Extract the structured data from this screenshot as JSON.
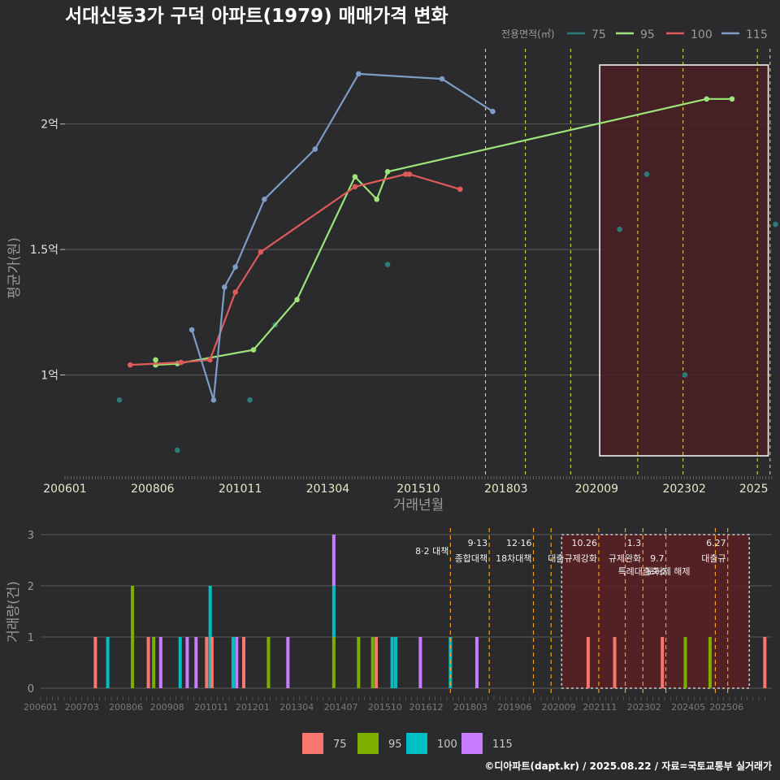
{
  "title": "서대신동3가 구덕 아파트(1979) 매매가격 변화",
  "footer": "©디아파트(dapt.kr) / 2025.08.22 / 자료=국토교통부 실거래가",
  "colors": {
    "s75": "#2b7d79",
    "s95": "#9be57a",
    "s100": "#e05a5a",
    "s115": "#7d9cc7",
    "b75": "#f8766d",
    "b95": "#7cae00",
    "b100": "#00bfc4",
    "b115": "#c77cff",
    "policy": "#e8e840",
    "policyBottom": "#f0a020",
    "highlight": "#4a2025"
  },
  "chart_data": [
    {
      "type": "line",
      "title": "서대신동3가 구덕 아파트(1979) 매매가격 변화",
      "xlabel": "거래년월",
      "ylabel": "평균가(원)",
      "x_ticks": [
        "200601",
        "200806",
        "201011",
        "201304",
        "201510",
        "201803",
        "202009",
        "202302",
        "2025"
      ],
      "y_ticks": [
        {
          "v": 1,
          "label": "1억"
        },
        {
          "v": 1.5,
          "label": "1.5억"
        },
        {
          "v": 2,
          "label": "2억"
        }
      ],
      "legend_title": "전용면적(㎡)",
      "ylim": [
        0.6,
        2.3
      ],
      "highlight_range": [
        2020.75,
        2025.4
      ],
      "policy_lines": [
        2017.6,
        2018.7,
        2019.95,
        2021.8,
        2023.05,
        2025.1,
        2025.45
      ],
      "series": [
        {
          "name": "75",
          "line": false,
          "points": [
            [
              2007.5,
              0.9
            ],
            [
              2009.1,
              0.7
            ],
            [
              2011.1,
              0.9
            ],
            [
              2011.8,
              1.2
            ],
            [
              2014.9,
              1.44
            ],
            [
              2021.3,
              1.58
            ],
            [
              2022.05,
              1.8
            ],
            [
              2023.1,
              1.0
            ],
            [
              2025.6,
              1.6
            ]
          ]
        },
        {
          "name": "95",
          "line": true,
          "points": [
            [
              2008.5,
              1.06
            ],
            [
              2008.5,
              1.04
            ],
            [
              2009.1,
              1.045
            ],
            [
              2011.2,
              1.1
            ],
            [
              2012.4,
              1.3
            ],
            [
              2014.0,
              1.79
            ],
            [
              2014.6,
              1.7
            ],
            [
              2014.9,
              1.81
            ],
            [
              2023.7,
              2.1
            ],
            [
              2024.4,
              2.1
            ]
          ]
        },
        {
          "name": "100",
          "line": true,
          "points": [
            [
              2007.8,
              1.04
            ],
            [
              2009.2,
              1.05
            ],
            [
              2010.0,
              1.06
            ],
            [
              2010.7,
              1.33
            ],
            [
              2011.4,
              1.49
            ],
            [
              2014.0,
              1.75
            ],
            [
              2015.4,
              1.8
            ],
            [
              2015.5,
              1.8
            ],
            [
              2016.9,
              1.74
            ]
          ]
        },
        {
          "name": "115",
          "line": true,
          "points": [
            [
              2009.5,
              1.18
            ],
            [
              2010.1,
              0.9
            ],
            [
              2010.4,
              1.35
            ],
            [
              2010.7,
              1.43
            ],
            [
              2011.5,
              1.7
            ],
            [
              2012.9,
              1.9
            ],
            [
              2014.1,
              2.2
            ],
            [
              2016.4,
              2.18
            ],
            [
              2017.8,
              2.05
            ]
          ]
        }
      ]
    },
    {
      "type": "bar",
      "ylabel": "거래량(건)",
      "x_ticks": [
        "200601",
        "200703",
        "200806",
        "200908",
        "201011",
        "201201",
        "201304",
        "201407",
        "201510",
        "201612",
        "201803",
        "201906",
        "202009",
        "202111",
        "202302",
        "202405",
        "202506"
      ],
      "y_ticks": [
        "0",
        "1",
        "2",
        "3"
      ],
      "ylim": [
        0,
        3
      ],
      "legend": [
        "75",
        "95",
        "100",
        "115"
      ],
      "bars": [
        {
          "x": 2007.55,
          "values": [
            1,
            0,
            0,
            0
          ]
        },
        {
          "x": 2007.9,
          "values": [
            0,
            0,
            1,
            0
          ]
        },
        {
          "x": 2008.6,
          "values": [
            0,
            2,
            0,
            0
          ]
        },
        {
          "x": 2009.05,
          "values": [
            1,
            0,
            0,
            0
          ]
        },
        {
          "x": 2009.2,
          "values": [
            0,
            1,
            0,
            0
          ]
        },
        {
          "x": 2009.4,
          "values": [
            0,
            0,
            0,
            1
          ]
        },
        {
          "x": 2009.95,
          "values": [
            0,
            0,
            1,
            0
          ]
        },
        {
          "x": 2010.15,
          "values": [
            0,
            0,
            0,
            1
          ]
        },
        {
          "x": 2010.4,
          "values": [
            0,
            0,
            0,
            1
          ]
        },
        {
          "x": 2010.7,
          "values": [
            1,
            0,
            0,
            0
          ]
        },
        {
          "x": 2010.8,
          "values": [
            0,
            0,
            2,
            0
          ]
        },
        {
          "x": 2010.85,
          "values": [
            1,
            0,
            0,
            0
          ]
        },
        {
          "x": 2011.45,
          "values": [
            0,
            0,
            1,
            0
          ]
        },
        {
          "x": 2011.55,
          "values": [
            0,
            0,
            0,
            1
          ]
        },
        {
          "x": 2011.75,
          "values": [
            1,
            0,
            0,
            0
          ]
        },
        {
          "x": 2012.45,
          "values": [
            0,
            1,
            0,
            0
          ]
        },
        {
          "x": 2013.0,
          "values": [
            0,
            0,
            0,
            1
          ]
        },
        {
          "x": 2014.3,
          "values": [
            0,
            1,
            1,
            1
          ]
        },
        {
          "x": 2015.0,
          "values": [
            0,
            1,
            0,
            0
          ]
        },
        {
          "x": 2015.4,
          "values": [
            0,
            1,
            0,
            0
          ]
        },
        {
          "x": 2015.5,
          "values": [
            1,
            0,
            0,
            0
          ]
        },
        {
          "x": 2015.95,
          "values": [
            0,
            0,
            1,
            0
          ]
        },
        {
          "x": 2016.05,
          "values": [
            0,
            0,
            1,
            0
          ]
        },
        {
          "x": 2016.75,
          "values": [
            0,
            0,
            0,
            1
          ]
        },
        {
          "x": 2017.6,
          "values": [
            0,
            0,
            1,
            0
          ]
        },
        {
          "x": 2018.35,
          "values": [
            0,
            0,
            0,
            1
          ]
        },
        {
          "x": 2021.5,
          "values": [
            1,
            0,
            0,
            0
          ]
        },
        {
          "x": 2022.25,
          "values": [
            1,
            0,
            0,
            0
          ]
        },
        {
          "x": 2023.6,
          "values": [
            1,
            0,
            0,
            0
          ]
        },
        {
          "x": 2024.25,
          "values": [
            0,
            1,
            0,
            0
          ]
        },
        {
          "x": 2024.95,
          "values": [
            0,
            1,
            0,
            0
          ]
        },
        {
          "x": 2026.5,
          "values": [
            1,
            0,
            0,
            0
          ]
        }
      ],
      "highlight_range": [
        2020.75,
        2025.6
      ],
      "policies": [
        {
          "x": 2017.6,
          "date": "",
          "label": "8·2 대책",
          "label2": ""
        },
        {
          "x": 2018.7,
          "date": "9·13",
          "label": "종합대책",
          "label2": ""
        },
        {
          "x": 2019.95,
          "date": "12·16",
          "label": "18차대책",
          "label2": ""
        },
        {
          "x": 2020.45,
          "date": "",
          "label": "",
          "label2": ""
        },
        {
          "x": 2021.8,
          "date": "10.26",
          "label": "대출규제강화",
          "label2": ""
        },
        {
          "x": 2022.55,
          "date": "",
          "label": "",
          "label2": ""
        },
        {
          "x": 2023.05,
          "date": "1.3",
          "label": "규제완화",
          "label2": "특례대출축소"
        },
        {
          "x": 2023.7,
          "date": "",
          "label": "9.7",
          "label2": "토허제 해제"
        },
        {
          "x": 2025.1,
          "date": "",
          "label": "",
          "label2": ""
        },
        {
          "x": 2025.45,
          "date": "6.27",
          "label": "대출규",
          "label2": ""
        }
      ]
    }
  ]
}
